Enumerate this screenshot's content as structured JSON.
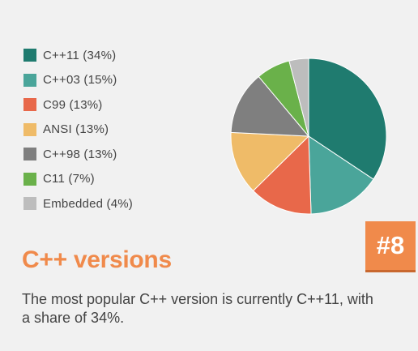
{
  "badge": "#8",
  "title": "C++ versions",
  "description": "The most popular C++ version is currently C++11, with a share of 34%.",
  "colors": {
    "accent": "#f08a4b",
    "background": "#f1f1f1",
    "text": "#444444"
  },
  "chart_data": {
    "type": "pie",
    "legend_position": "left",
    "slices": [
      {
        "label": "C++11 (34%)",
        "name": "C++11",
        "value": 34,
        "color": "#1f7b6f"
      },
      {
        "label": "C++03 (15%)",
        "name": "C++03",
        "value": 15,
        "color": "#4aa59a"
      },
      {
        "label": "C99 (13%)",
        "name": "C99",
        "value": 13,
        "color": "#e8684a"
      },
      {
        "label": "ANSI (13%)",
        "name": "ANSI",
        "value": 13,
        "color": "#efbb68"
      },
      {
        "label": "C++98 (13%)",
        "name": "C++98",
        "value": 13,
        "color": "#7f7f7f"
      },
      {
        "label": "C11 (7%)",
        "name": "C11",
        "value": 7,
        "color": "#6ab14a"
      },
      {
        "label": "Embedded (4%)",
        "name": "Embedded",
        "value": 4,
        "color": "#bdbdbd"
      }
    ]
  }
}
